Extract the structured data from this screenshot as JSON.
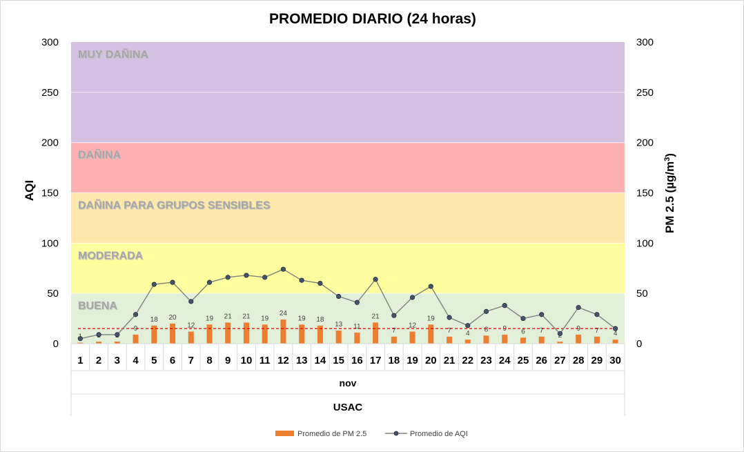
{
  "chart_data": {
    "type": "bar+line",
    "title": "PROMEDIO DIARIO (24 horas)",
    "ylabel_left": "AQI",
    "ylabel_right_prefix": "PM 2.5 (µg/m",
    "ylabel_right_sup": "3",
    "ylabel_right_suffix": ")",
    "ylim": [
      0,
      300
    ],
    "yticks": [
      0,
      50,
      100,
      150,
      200,
      250,
      300
    ],
    "x_group_label": "nov",
    "x_outer_label": "USAC",
    "categories": [
      "1",
      "2",
      "3",
      "4",
      "5",
      "6",
      "7",
      "8",
      "9",
      "10",
      "11",
      "12",
      "13",
      "14",
      "15",
      "16",
      "17",
      "18",
      "19",
      "20",
      "21",
      "22",
      "23",
      "24",
      "25",
      "26",
      "27",
      "28",
      "29",
      "30"
    ],
    "bands": [
      {
        "label": "BUENA",
        "from": 0,
        "to": 50,
        "color": "#e2efd9"
      },
      {
        "label": "MODERADA",
        "from": 50,
        "to": 100,
        "color": "#ffff9f"
      },
      {
        "label": "DAÑINA PARA GRUPOS SENSIBLES",
        "from": 100,
        "to": 150,
        "color": "#ffe8ab"
      },
      {
        "label": "DAÑINA",
        "from": 150,
        "to": 200,
        "color": "#ffb1b1"
      },
      {
        "label": "MUY DAÑINA",
        "from": 200,
        "to": 300,
        "color": "#d5c1e3"
      }
    ],
    "series": [
      {
        "name": "Promedio de PM 2.5",
        "kind": "bar",
        "color": "#ed7d31",
        "values": [
          1,
          2,
          2,
          9,
          18,
          20,
          12,
          19,
          21,
          21,
          19,
          24,
          19,
          18,
          13,
          11,
          21,
          7,
          12,
          19,
          7,
          4,
          8,
          9,
          6,
          7,
          2,
          9,
          7,
          4
        ]
      },
      {
        "name": "Promedio de AQI",
        "kind": "line",
        "color": "#808080",
        "marker": "#44546a",
        "values": [
          5,
          9,
          9,
          29,
          59,
          61,
          42,
          61,
          66,
          68,
          66,
          74,
          63,
          60,
          47,
          41,
          64,
          28,
          46,
          57,
          26,
          18,
          32,
          38,
          25,
          29,
          10,
          36,
          29,
          15
        ]
      }
    ],
    "reference_line": {
      "value": 15,
      "color": "#e00000",
      "style": "dashed"
    }
  }
}
